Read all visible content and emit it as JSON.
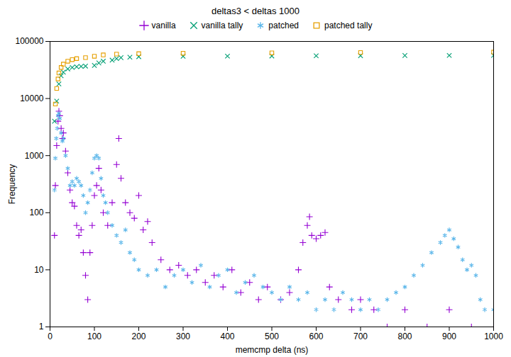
{
  "chart_data": {
    "type": "scatter",
    "title": "deltas3 < deltas 1000",
    "x_label": "memcmp delta (ns)",
    "y_label": "Frequency",
    "xlim": [
      0,
      1000
    ],
    "xticks": [
      0,
      100,
      200,
      300,
      400,
      500,
      600,
      700,
      800,
      900,
      1000
    ],
    "ylim": [
      1,
      100000
    ],
    "yticks": [
      1,
      10,
      100,
      1000,
      10000,
      100000
    ],
    "log": "y",
    "grid": false,
    "legend": "top",
    "series": [
      {
        "name": "vanilla",
        "color": "#9400d3",
        "marker": "plus",
        "x": [
          10,
          12,
          15,
          18,
          20,
          22,
          25,
          28,
          30,
          35,
          40,
          45,
          50,
          55,
          60,
          65,
          70,
          75,
          80,
          85,
          90,
          95,
          100,
          105,
          110,
          115,
          120,
          130,
          140,
          150,
          155,
          160,
          170,
          180,
          190,
          200,
          210,
          220,
          230,
          250,
          270,
          290,
          310,
          330,
          350,
          370,
          390,
          410,
          430,
          450,
          470,
          490,
          520,
          540,
          560,
          570,
          580,
          585,
          590,
          600,
          610,
          620,
          630,
          650,
          680,
          700,
          730,
          760,
          800,
          850,
          900,
          950,
          1000
        ],
        "values": [
          40,
          300,
          1500,
          4000,
          6000,
          5000,
          3000,
          2000,
          2500,
          1200,
          500,
          250,
          150,
          130,
          60,
          40,
          50,
          20,
          8,
          3,
          20,
          60,
          200,
          300,
          600,
          250,
          100,
          60,
          150,
          700,
          2000,
          400,
          150,
          100,
          80,
          200,
          50,
          70,
          30,
          15,
          10,
          12,
          8,
          10,
          6,
          8,
          5,
          10,
          4,
          6,
          3,
          5,
          3,
          4,
          10,
          30,
          60,
          85,
          40,
          35,
          40,
          45,
          5,
          3,
          2,
          3,
          2,
          1,
          2,
          1,
          2,
          1,
          1
        ]
      },
      {
        "name": "vanilla tally",
        "color": "#009e73",
        "marker": "times",
        "x": [
          10,
          15,
          20,
          25,
          30,
          40,
          50,
          60,
          70,
          80,
          100,
          110,
          120,
          140,
          150,
          160,
          180,
          200,
          300,
          400,
          500,
          600,
          700,
          800,
          900,
          1000
        ],
        "values": [
          4000,
          9000,
          18000,
          25000,
          29000,
          33000,
          35000,
          36000,
          36500,
          37000,
          38000,
          42000,
          45000,
          47000,
          50000,
          52000,
          53000,
          54000,
          55000,
          55300,
          55600,
          56000,
          56300,
          56600,
          56900,
          57000
        ]
      },
      {
        "name": "patched",
        "color": "#56b4e9",
        "marker": "asterisk",
        "x": [
          10,
          12,
          14,
          16,
          18,
          20,
          22,
          25,
          28,
          30,
          35,
          40,
          45,
          50,
          55,
          60,
          65,
          70,
          75,
          80,
          85,
          90,
          95,
          100,
          105,
          110,
          115,
          120,
          125,
          130,
          140,
          150,
          160,
          170,
          180,
          190,
          200,
          220,
          240,
          260,
          280,
          300,
          320,
          340,
          360,
          380,
          400,
          420,
          440,
          460,
          480,
          500,
          520,
          540,
          560,
          580,
          600,
          620,
          640,
          660,
          680,
          700,
          720,
          740,
          760,
          780,
          800,
          820,
          840,
          860,
          880,
          890,
          900,
          910,
          920,
          930,
          940,
          950,
          960,
          970,
          980,
          1000
        ],
        "values": [
          250,
          900,
          2000,
          3000,
          5000,
          5500,
          4500,
          2500,
          1800,
          2000,
          1000,
          600,
          300,
          350,
          300,
          400,
          350,
          300,
          200,
          100,
          150,
          250,
          500,
          900,
          1000,
          900,
          400,
          200,
          150,
          100,
          60,
          40,
          30,
          50,
          20,
          15,
          10,
          8,
          10,
          5,
          8,
          10,
          6,
          12,
          5,
          8,
          10,
          4,
          6,
          8,
          5,
          4,
          3,
          5,
          3,
          4,
          2,
          3,
          2,
          4,
          3,
          2,
          3,
          2,
          3,
          4,
          5,
          8,
          12,
          20,
          30,
          40,
          50,
          35,
          25,
          15,
          10,
          12,
          8,
          3,
          2,
          2
        ]
      },
      {
        "name": "patched tally",
        "color": "#e69f00",
        "marker": "square",
        "x": [
          12,
          15,
          18,
          20,
          25,
          30,
          40,
          50,
          60,
          80,
          100,
          120,
          150,
          200,
          300,
          500,
          700,
          1000
        ],
        "values": [
          8000,
          15000,
          22000,
          28000,
          35000,
          40000,
          45000,
          48000,
          50000,
          52000,
          55000,
          58000,
          60000,
          61000,
          62000,
          63000,
          64000,
          65000
        ]
      }
    ]
  }
}
